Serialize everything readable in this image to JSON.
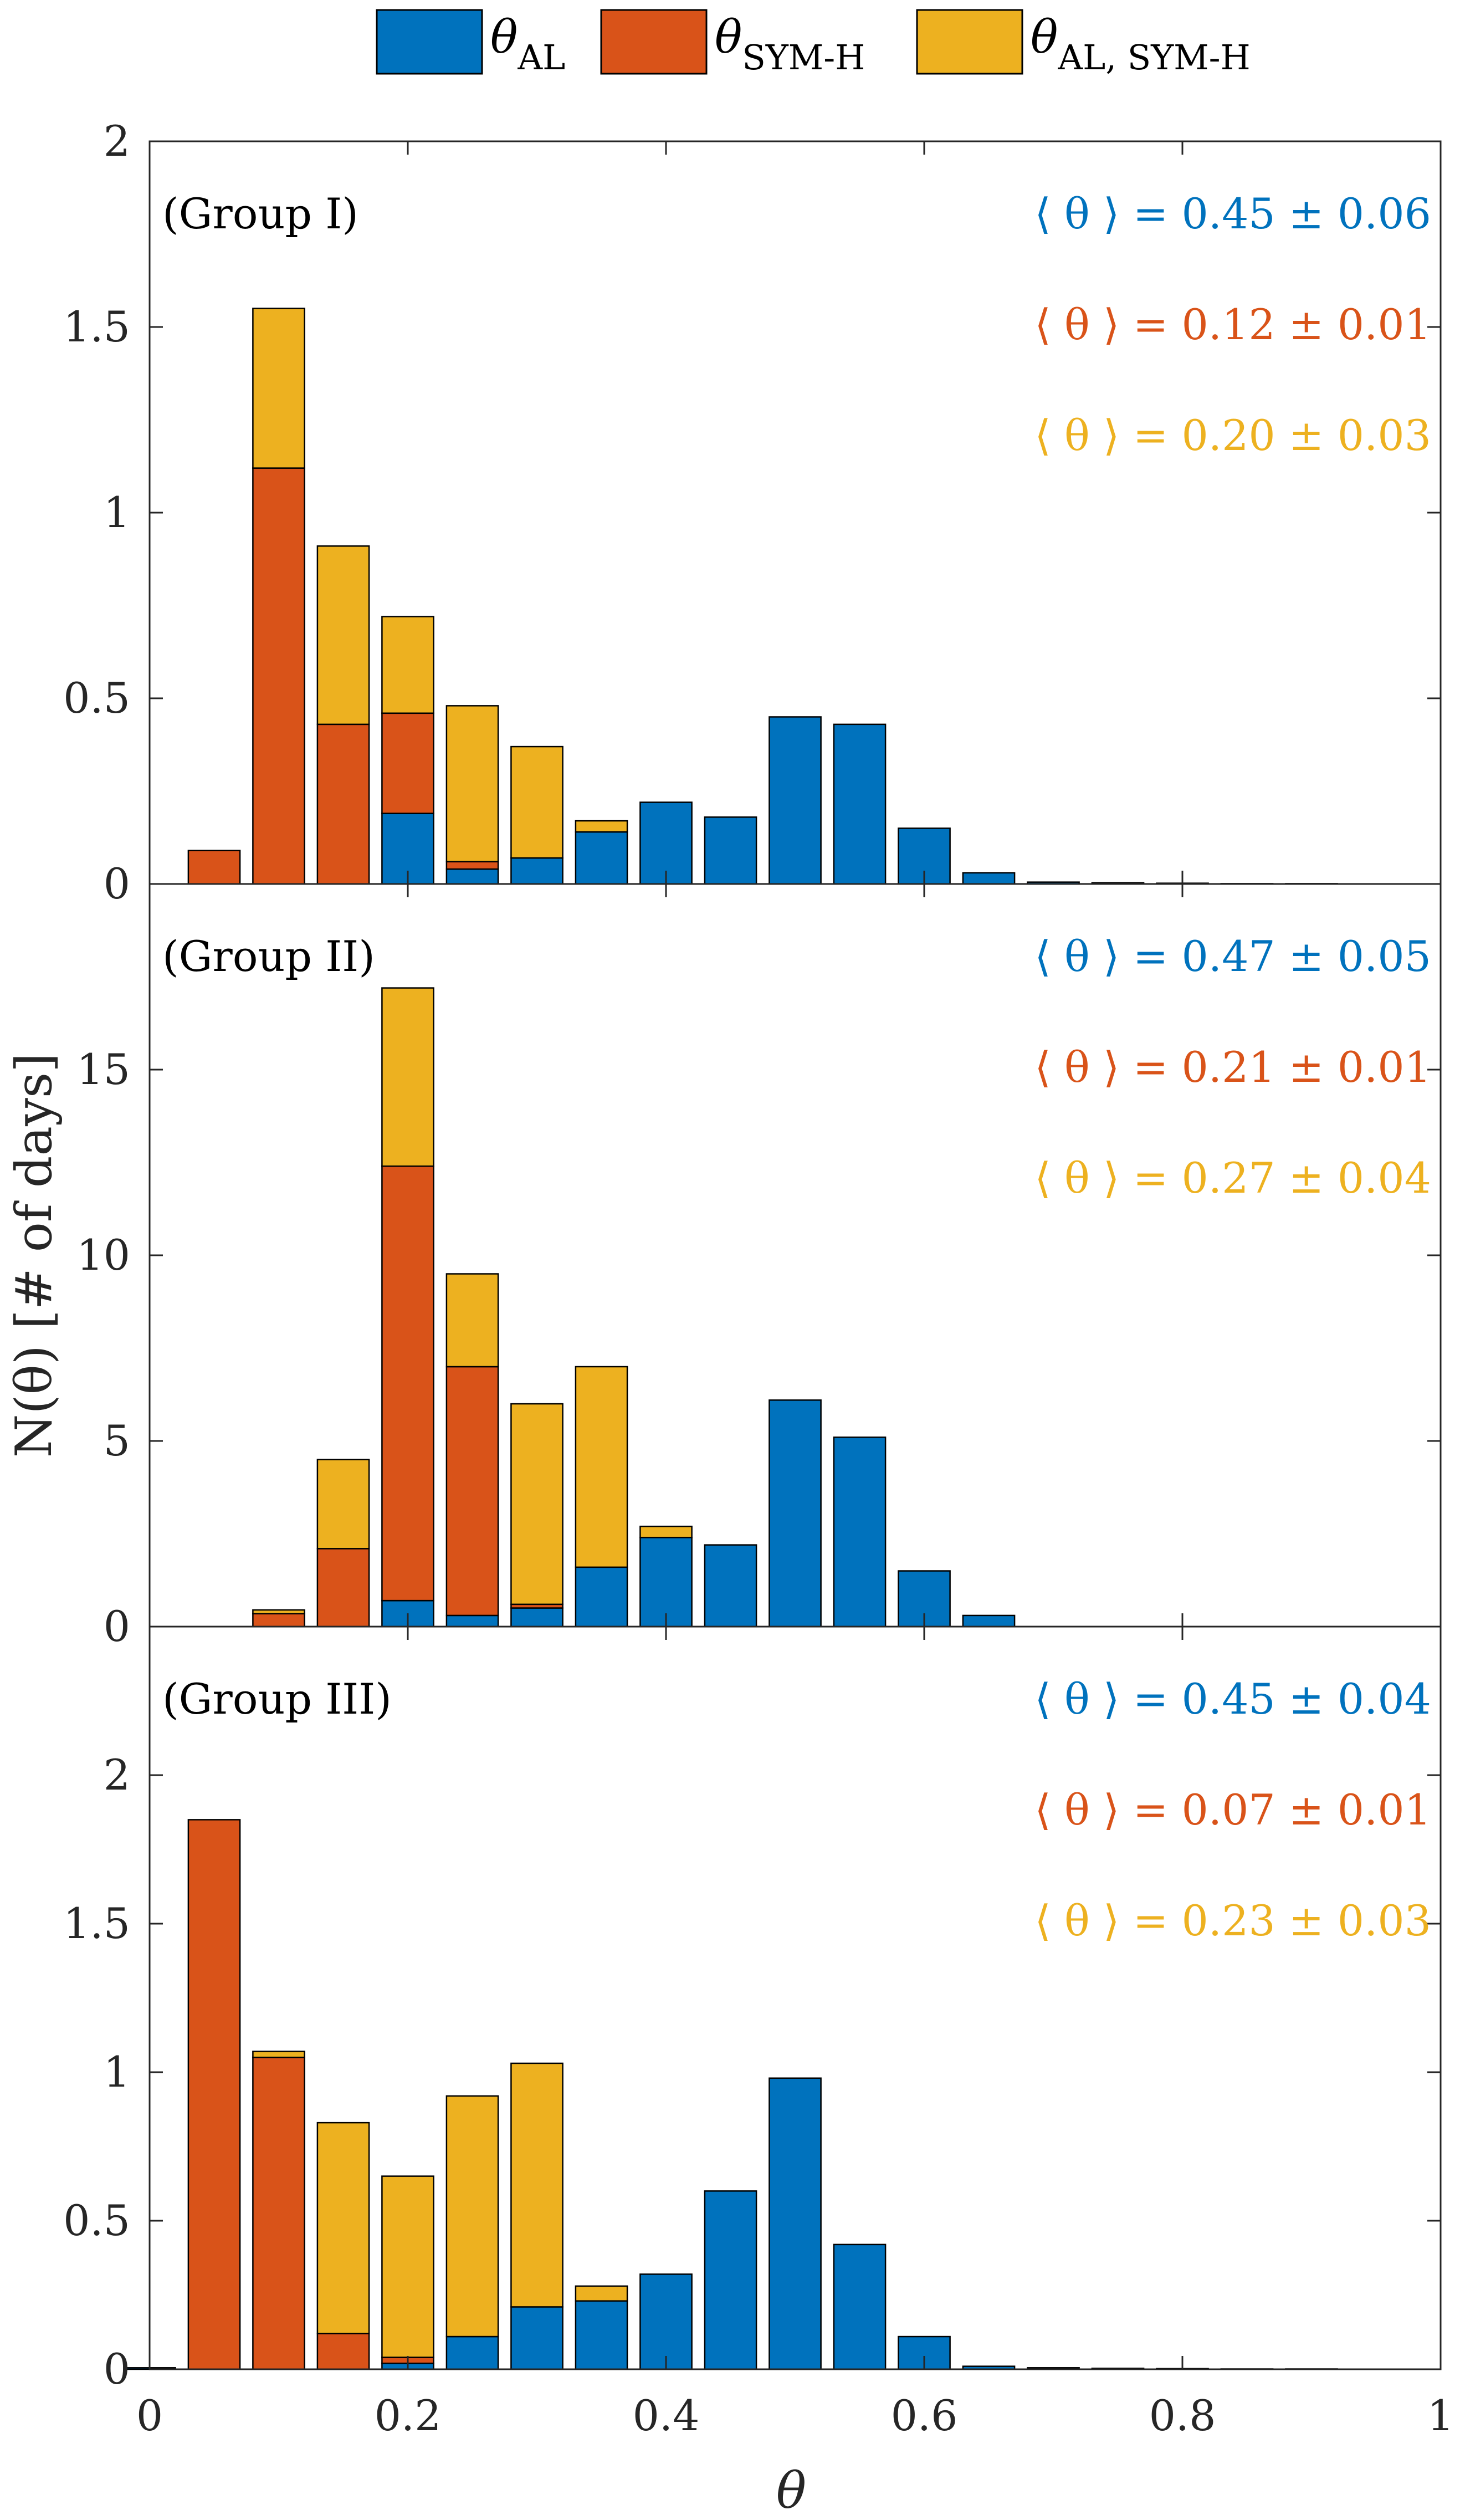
{
  "chart_data": {
    "type": "bar",
    "stacked": true,
    "x_axis": {
      "label": "θ",
      "lim": [
        0,
        1
      ],
      "ticks": [
        0,
        0.2,
        0.4,
        0.6,
        0.8,
        1
      ],
      "tick_labels": [
        "0",
        "0.2",
        "0.4",
        "0.6",
        "0.8",
        "1"
      ]
    },
    "y_axis_label": "N(θ) [# of days]",
    "bin_centers": [
      0.0,
      0.05,
      0.1,
      0.15,
      0.2,
      0.25,
      0.3,
      0.35,
      0.4,
      0.45,
      0.5,
      0.55,
      0.6,
      0.65,
      0.7,
      0.75,
      0.8,
      0.85,
      0.9,
      0.95
    ],
    "legend": [
      {
        "key": "al",
        "symbol": "θ",
        "sub": "AL",
        "color": "#0072BD"
      },
      {
        "key": "symh",
        "symbol": "θ",
        "sub": "SYM-H",
        "color": "#D95319"
      },
      {
        "key": "both",
        "symbol": "θ",
        "sub": "AL, SYM-H",
        "color": "#EDB120"
      }
    ],
    "panels": [
      {
        "label": "(Group I)",
        "ylim": [
          0,
          2
        ],
        "yticks": [
          0,
          0.5,
          1,
          1.5,
          2
        ],
        "ytick_labels": [
          "0",
          "0.5",
          "1",
          "1.5",
          "2"
        ],
        "series": [
          {
            "name": "θ AL",
            "values": [
              0,
              0,
              0,
              0,
              0.19,
              0.04,
              0.07,
              0.14,
              0.22,
              0.18,
              0.45,
              0.43,
              0.15,
              0.03,
              0.005,
              0.003,
              0.002,
              0.001,
              0.001,
              0
            ]
          },
          {
            "name": "θ SYM-H",
            "values": [
              0,
              0.09,
              1.12,
              0.43,
              0.27,
              0.02,
              0,
              0,
              0,
              0,
              0,
              0,
              0,
              0,
              0,
              0,
              0,
              0,
              0,
              0
            ]
          },
          {
            "name": "θ AL, SYM-H",
            "values": [
              0,
              0,
              0.43,
              0.48,
              0.26,
              0.42,
              0.3,
              0.03,
              0,
              0,
              0,
              0,
              0,
              0,
              0,
              0,
              0,
              0,
              0,
              0
            ]
          }
        ],
        "stats": [
          "⟨ θ ⟩ = 0.45 ± 0.06",
          "⟨ θ ⟩ = 0.12 ± 0.01",
          "⟨ θ ⟩ = 0.20 ± 0.03"
        ]
      },
      {
        "label": "(Group II)",
        "ylim": [
          0,
          20
        ],
        "yticks": [
          0,
          5,
          10,
          15
        ],
        "ytick_labels": [
          "0",
          "5",
          "10",
          "15"
        ],
        "series": [
          {
            "name": "θ AL",
            "values": [
              0,
              0,
              0,
              0,
              0.7,
              0.3,
              0.5,
              1.6,
              2.4,
              2.2,
              6.1,
              5.1,
              1.5,
              0.3,
              0,
              0,
              0,
              0,
              0,
              0
            ]
          },
          {
            "name": "θ SYM-H",
            "values": [
              0,
              0,
              0.35,
              2.1,
              11.7,
              6.7,
              0.1,
              0,
              0,
              0,
              0,
              0,
              0,
              0,
              0,
              0,
              0,
              0,
              0,
              0
            ]
          },
          {
            "name": "θ AL, SYM-H",
            "values": [
              0,
              0,
              0.1,
              2.4,
              4.8,
              2.5,
              5.4,
              5.4,
              0.3,
              0,
              0,
              0,
              0,
              0,
              0,
              0,
              0,
              0,
              0,
              0
            ]
          }
        ],
        "stats": [
          "⟨ θ ⟩ = 0.47 ± 0.05",
          "⟨ θ ⟩ = 0.21 ± 0.01",
          "⟨ θ ⟩ = 0.27 ± 0.04"
        ]
      },
      {
        "label": "(Group III)",
        "ylim": [
          0,
          2.5
        ],
        "yticks": [
          0,
          0.5,
          1,
          1.5,
          2
        ],
        "ytick_labels": [
          "0",
          "0.5",
          "1",
          "1.5",
          "2"
        ],
        "series": [
          {
            "name": "θ AL",
            "values": [
              0.005,
              0,
              0,
              0,
              0.02,
              0.11,
              0.21,
              0.23,
              0.32,
              0.6,
              0.98,
              0.42,
              0.11,
              0.01,
              0.005,
              0.003,
              0.002,
              0.001,
              0.001,
              0
            ]
          },
          {
            "name": "θ SYM-H",
            "values": [
              0,
              1.85,
              1.05,
              0.12,
              0.02,
              0,
              0,
              0,
              0,
              0,
              0,
              0,
              0,
              0,
              0,
              0,
              0,
              0,
              0,
              0
            ]
          },
          {
            "name": "θ AL, SYM-H",
            "values": [
              0,
              0,
              0.02,
              0.71,
              0.61,
              0.81,
              0.82,
              0.05,
              0,
              0,
              0,
              0,
              0,
              0,
              0,
              0,
              0,
              0,
              0,
              0
            ]
          }
        ],
        "stats": [
          "⟨ θ ⟩ = 0.45 ± 0.04",
          "⟨ θ ⟩ = 0.07 ± 0.01",
          "⟨ θ ⟩ = 0.23 ± 0.03"
        ]
      }
    ]
  }
}
